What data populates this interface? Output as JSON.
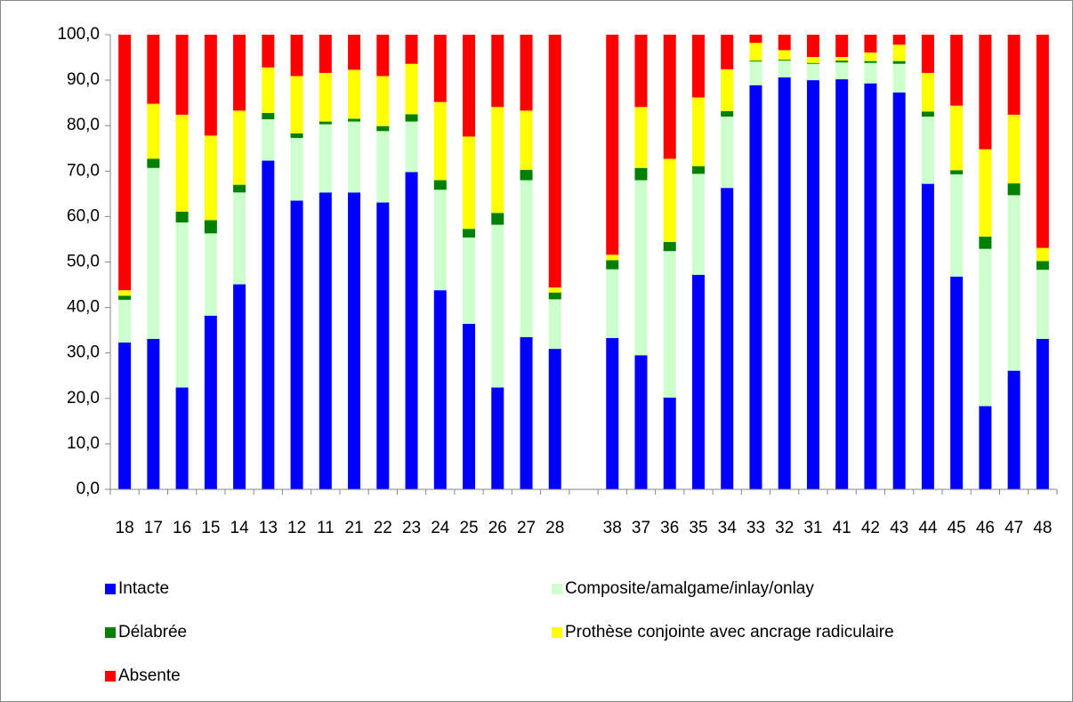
{
  "chart_data": {
    "type": "stacked-bar",
    "categories": [
      "18",
      "17",
      "16",
      "15",
      "14",
      "13",
      "12",
      "11",
      "21",
      "22",
      "23",
      "24",
      "25",
      "26",
      "27",
      "28",
      null,
      "38",
      "37",
      "36",
      "35",
      "34",
      "33",
      "32",
      "31",
      "41",
      "42",
      "43",
      "44",
      "45",
      "46",
      "47",
      "48"
    ],
    "series": [
      {
        "name": "Intacte",
        "color": "#0000ff",
        "values": [
          32.3,
          33.1,
          22.4,
          38.2,
          45.1,
          72.3,
          63.5,
          65.3,
          65.3,
          63.1,
          69.8,
          43.8,
          36.4,
          22.4,
          33.5,
          30.9,
          null,
          33.3,
          29.5,
          20.2,
          47.2,
          66.3,
          88.9,
          90.6,
          90.0,
          90.2,
          89.3,
          87.3,
          67.2,
          46.8,
          18.3,
          26.1,
          33.1
        ]
      },
      {
        "name": "Composite/amalgame/inlay/onlay",
        "color": "#ccffcc",
        "values": [
          9.4,
          37.6,
          36.3,
          18.1,
          20.2,
          9.1,
          13.8,
          15.0,
          15.6,
          15.7,
          11.1,
          22.1,
          19.0,
          35.8,
          34.5,
          10.9,
          null,
          15.1,
          38.5,
          32.2,
          22.2,
          15.7,
          5.2,
          3.7,
          3.6,
          3.7,
          4.5,
          6.3,
          14.8,
          22.5,
          34.6,
          38.6,
          15.2
        ]
      },
      {
        "name": "Délabrée",
        "color": "#008000",
        "values": [
          0.9,
          2.0,
          2.4,
          2.9,
          1.7,
          1.4,
          1.0,
          0.6,
          0.6,
          1.1,
          1.6,
          2.1,
          1.9,
          2.6,
          2.3,
          1.5,
          null,
          2.0,
          2.7,
          2.0,
          1.7,
          1.2,
          0.2,
          0.2,
          0.2,
          0.4,
          0.4,
          0.6,
          1.1,
          0.9,
          2.7,
          2.6,
          1.9
        ]
      },
      {
        "name": "Prothèse conjointe avec ancrage radiculaire",
        "color": "#ffff00",
        "values": [
          1.2,
          12.1,
          21.3,
          18.6,
          16.3,
          10.0,
          12.6,
          10.7,
          10.8,
          11.0,
          11.1,
          17.2,
          20.3,
          23.3,
          13.0,
          1.1,
          null,
          1.2,
          13.4,
          18.3,
          15.1,
          9.2,
          3.9,
          2.1,
          1.3,
          0.8,
          1.9,
          3.6,
          8.5,
          14.2,
          19.2,
          15.1,
          2.9
        ]
      },
      {
        "name": "Absente",
        "color": "#ff0000",
        "values": [
          56.2,
          15.2,
          17.6,
          22.2,
          16.7,
          7.2,
          9.1,
          8.4,
          7.7,
          9.1,
          6.4,
          14.8,
          22.4,
          15.9,
          16.7,
          55.6,
          null,
          48.4,
          15.9,
          27.3,
          13.8,
          7.6,
          1.8,
          3.4,
          4.9,
          4.9,
          3.9,
          2.2,
          8.4,
          15.6,
          25.2,
          17.6,
          46.9
        ]
      }
    ],
    "ylim": [
      0,
      100
    ],
    "yticks": [
      {
        "value": 0,
        "label": "0,0"
      },
      {
        "value": 10,
        "label": "10,0"
      },
      {
        "value": 20,
        "label": "20,0"
      },
      {
        "value": 30,
        "label": "30,0"
      },
      {
        "value": 40,
        "label": "40,0"
      },
      {
        "value": 50,
        "label": "50,0"
      },
      {
        "value": 60,
        "label": "60,0"
      },
      {
        "value": 70,
        "label": "70,0"
      },
      {
        "value": 80,
        "label": "80,0"
      },
      {
        "value": 90,
        "label": "90,0"
      },
      {
        "value": 100,
        "label": "100,0"
      }
    ],
    "grid": false
  }
}
